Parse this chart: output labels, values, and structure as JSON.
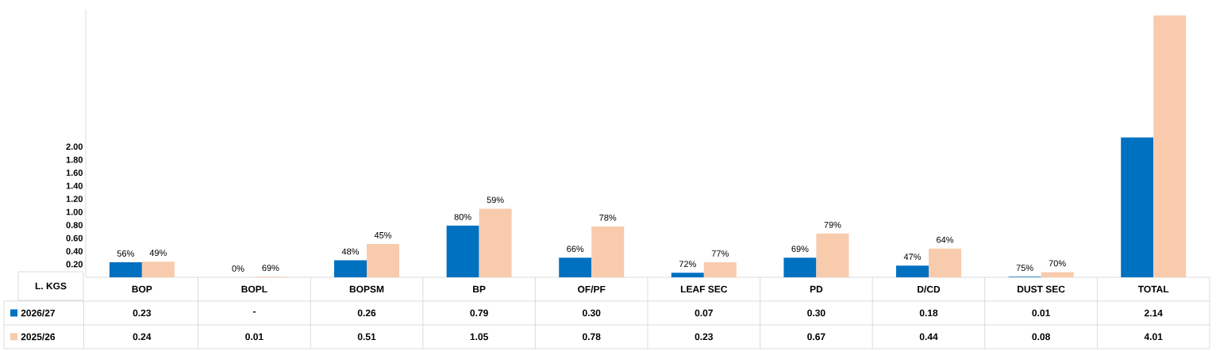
{
  "chart_data": {
    "type": "bar",
    "ylabel": "L. KGS",
    "categories": [
      "BOP",
      "BOPL",
      "BOPSM",
      "BP",
      "OF/PF",
      "LEAF SEC",
      "PD",
      "D/CD",
      "DUST SEC",
      "TOTAL"
    ],
    "series": [
      {
        "name": "2026/27",
        "color": "#0070c0",
        "values": [
          0.23,
          0,
          0.26,
          0.79,
          0.3,
          0.07,
          0.3,
          0.18,
          0.01,
          2.14
        ],
        "value_labels": [
          "0.23",
          "-",
          "0.26",
          "0.79",
          "0.30",
          "0.07",
          "0.30",
          "0.18",
          "0.01",
          "2.14"
        ]
      },
      {
        "name": "2025/26",
        "color": "#f8cbad",
        "values": [
          0.24,
          0.01,
          0.51,
          1.05,
          0.78,
          0.23,
          0.67,
          0.44,
          0.08,
          4.01
        ],
        "value_labels": [
          "0.24",
          "0.01",
          "0.51",
          "1.05",
          "0.78",
          "0.23",
          "0.67",
          "0.44",
          "0.08",
          "4.01"
        ]
      }
    ],
    "annotations": [
      {
        "text": "56%",
        "x": "BOP",
        "y": 0.23
      },
      {
        "text": "0%",
        "x": "BOPL",
        "y": 0
      },
      {
        "text": "48%",
        "x": "BOPSM",
        "y": 0.26
      },
      {
        "text": "80%",
        "x": "BP",
        "y": 0.79
      },
      {
        "text": "66%",
        "x": "OF/PF",
        "y": 0.3
      },
      {
        "text": "72%",
        "x": "LEAF SEC",
        "y": 0.07
      },
      {
        "text": "69%",
        "x": "PD",
        "y": 0.3
      },
      {
        "text": "47%",
        "x": "D/CD",
        "y": 0.18
      },
      {
        "text": "75%",
        "x": "DUST SEC",
        "y": 0.01
      },
      {
        "text": "49%",
        "x": "BOP",
        "y": 0.24
      },
      {
        "text": "69%",
        "x": "BOPL",
        "y": 0.01
      },
      {
        "text": "45%",
        "x": "BOPSM",
        "y": 0.51
      },
      {
        "text": "59%",
        "x": "BP",
        "y": 1.05
      },
      {
        "text": "78%",
        "x": "OF/PF",
        "y": 0.78
      },
      {
        "text": "77%",
        "x": "LEAF SEC",
        "y": 0.23
      },
      {
        "text": "79%",
        "x": "PD",
        "y": 0.67
      },
      {
        "text": "64%",
        "x": "D/CD",
        "y": 0.44
      },
      {
        "text": "70%",
        "x": "DUST SEC",
        "y": 0.08
      }
    ],
    "ylim": [
      0,
      4.1
    ],
    "yticks": [
      {
        "value": 0.2,
        "label": "0.20"
      },
      {
        "value": 0.4,
        "label": "0.40"
      },
      {
        "value": 0.6,
        "label": "0.60"
      },
      {
        "value": 0.8,
        "label": "0.80"
      },
      {
        "value": 1.0,
        "label": "1.00"
      },
      {
        "value": 1.2,
        "label": "1.20"
      },
      {
        "value": 1.4,
        "label": "1.40"
      },
      {
        "value": 1.6,
        "label": "1.60"
      },
      {
        "value": 1.8,
        "label": "1.80"
      },
      {
        "value": 2.0,
        "label": "2.00"
      }
    ],
    "legend": "bottom",
    "grid": false
  }
}
